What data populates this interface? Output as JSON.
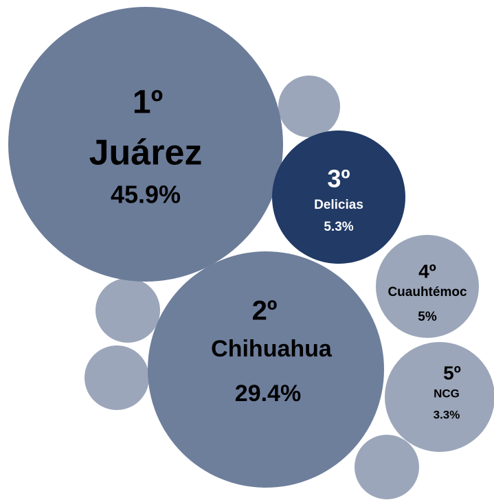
{
  "bubbles": [
    {
      "rank": "1º",
      "name": "Juárez",
      "value": "45.9%"
    },
    {
      "rank": "2º",
      "name": "Chihuahua",
      "value": "29.4%"
    },
    {
      "rank": "3º",
      "name": "Delicias",
      "value": "5.3%"
    },
    {
      "rank": "4º",
      "name": "Cuauhtémoc",
      "value": "5%"
    },
    {
      "rank": "5º",
      "name": "NCG",
      "value": "3.3%"
    }
  ]
}
